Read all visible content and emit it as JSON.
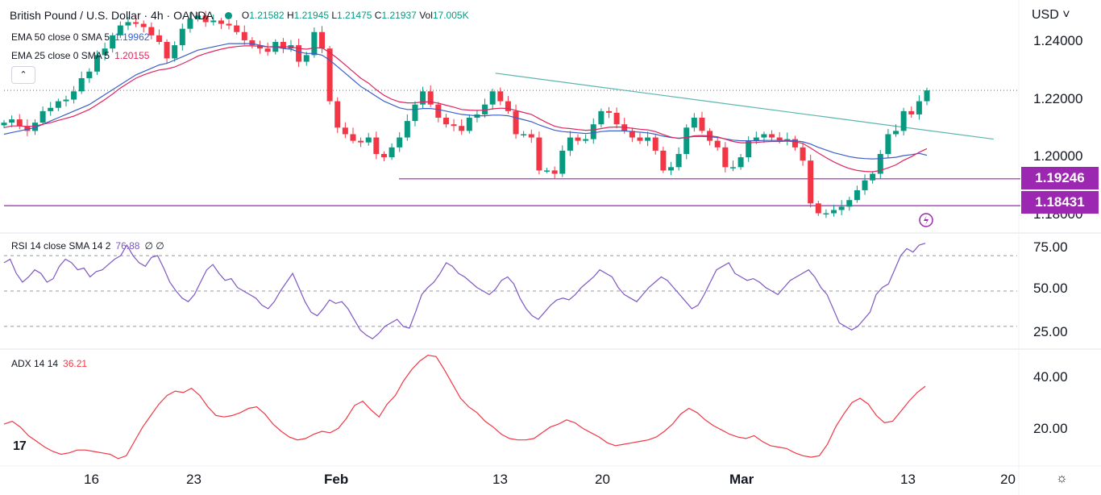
{
  "header": {
    "symbol_title": "British Pound / U.S. Dollar · 4h · OANDA",
    "ohlc": [
      {
        "key": "O",
        "value": "1.21582"
      },
      {
        "key": "H",
        "value": "1.21945"
      },
      {
        "key": "L",
        "value": "1.21475"
      },
      {
        "key": "C",
        "value": "1.21937"
      },
      {
        "key": "Vol",
        "value": "17.005K"
      }
    ]
  },
  "indicators": {
    "ema50": {
      "label": "EMA 50 close 0 SMA 5",
      "value": "1.19962",
      "color": "#3a5fc8"
    },
    "ema25": {
      "label": "EMA 25 close 0 SMA 5",
      "value": "1.20155",
      "color": "#e0245e"
    },
    "rsi": {
      "label": "RSI 14 close SMA 14 2",
      "value": "76.88",
      "extra": "∅ ∅",
      "color": "#7e57c2"
    },
    "adx": {
      "label": "ADX 14 14",
      "value": "36.21",
      "color": "#f23645"
    }
  },
  "currency_selector": "USD ˅",
  "collapse_glyph": "⌃",
  "logo_text": "17",
  "settings_glyph": "☼",
  "colors": {
    "up": "#089981",
    "down": "#f23645",
    "level": "#9c27b0",
    "trend": "#5bb5b0"
  },
  "price_axis": [
    "1.24000",
    "1.22000",
    "1.20000",
    "1.18000"
  ],
  "rsi_axis": [
    "75.00",
    "50.00",
    "25.00"
  ],
  "adx_axis": [
    "40.00",
    "20.00"
  ],
  "price_tags": [
    "1.19246",
    "1.18431"
  ],
  "time_axis": [
    "16",
    "23",
    "Feb",
    "13",
    "20",
    "Mar",
    "13",
    "20"
  ],
  "chart_data": [
    {
      "type": "candlestick",
      "title": "British Pound / U.S. Dollar · 4h · OANDA",
      "ylim": [
        1.177,
        1.2455
      ],
      "levels": [
        1.19246,
        1.18431
      ],
      "trendline": {
        "from": [
          0.485,
          1.2245
        ],
        "to": [
          1.32,
          1.2045
        ]
      },
      "series": [
        {
          "name": "Close",
          "values": [
            1.2095,
            1.2105,
            1.2085,
            1.207,
            1.2095,
            1.213,
            1.214,
            1.216,
            1.2165,
            1.219,
            1.223,
            1.225,
            1.23,
            1.232,
            1.236,
            1.239,
            1.24,
            1.2395,
            1.2385,
            1.236,
            1.234,
            1.229,
            1.233,
            1.238,
            1.241,
            1.242,
            1.24,
            1.2405,
            1.2395,
            1.239,
            1.237,
            1.2345,
            1.233,
            1.232,
            1.231,
            1.234,
            1.232,
            1.233,
            1.228,
            1.23,
            1.237,
            1.232,
            1.216,
            1.208,
            1.206,
            1.204,
            1.2035,
            1.205,
            1.2,
            1.199,
            1.202,
            1.205,
            1.21,
            1.215,
            1.219,
            1.215,
            1.211,
            1.209,
            1.2085,
            1.207,
            1.211,
            1.212,
            1.215,
            1.219,
            1.216,
            1.213,
            1.206,
            1.206,
            1.205,
            1.195,
            1.195,
            1.194,
            1.201,
            1.205,
            1.204,
            1.2045,
            1.209,
            1.213,
            1.2125,
            1.209,
            1.207,
            1.205,
            1.204,
            1.205,
            1.201,
            1.195,
            1.196,
            1.2,
            1.208,
            1.211,
            1.207,
            1.204,
            1.202,
            1.196,
            1.196,
            1.199,
            1.204,
            1.205,
            1.206,
            1.205,
            1.204,
            1.2045,
            1.202,
            1.198,
            1.185,
            1.182,
            1.182,
            1.183,
            1.184,
            1.186,
            1.189,
            1.192,
            1.194,
            1.2,
            1.206,
            1.207,
            1.213,
            1.212,
            1.216,
            1.2193
          ]
        },
        {
          "name": "EMA 50",
          "values": [
            1.206,
            1.2065,
            1.207,
            1.2075,
            1.208,
            1.209,
            1.21,
            1.211,
            1.212,
            1.213,
            1.214,
            1.215,
            1.2165,
            1.218,
            1.2195,
            1.221,
            1.2225,
            1.224,
            1.225,
            1.226,
            1.227,
            1.2275,
            1.2285,
            1.2295,
            1.2305,
            1.2315,
            1.232,
            1.2325,
            1.233,
            1.2335,
            1.2335,
            1.2335,
            1.2335,
            1.233,
            1.2325,
            1.2325,
            1.232,
            1.2318,
            1.231,
            1.2305,
            1.2305,
            1.23,
            1.2285,
            1.2265,
            1.2245,
            1.2225,
            1.2205,
            1.219,
            1.2175,
            1.216,
            1.215,
            1.214,
            1.2135,
            1.2135,
            1.2138,
            1.2138,
            1.2135,
            1.213,
            1.2125,
            1.212,
            1.2118,
            1.2116,
            1.2116,
            1.2118,
            1.2118,
            1.2116,
            1.211,
            1.2104,
            1.2098,
            1.2088,
            1.208,
            1.2072,
            1.2068,
            1.2066,
            1.2064,
            1.2062,
            1.2064,
            1.2068,
            1.207,
            1.207,
            1.207,
            1.2068,
            1.2066,
            1.2064,
            1.206,
            1.2054,
            1.205,
            1.2048,
            1.205,
            1.2053,
            1.2053,
            1.2052,
            1.205,
            1.2046,
            1.2042,
            1.204,
            1.204,
            1.204,
            1.2041,
            1.2041,
            1.2041,
            1.2041,
            1.204,
            1.2037,
            1.203,
            1.202,
            1.2012,
            1.2004,
            1.1998,
            1.1992,
            1.1988,
            1.1986,
            1.1985,
            1.1986,
            1.1988,
            1.199,
            1.1995,
            1.1998,
            1.2002,
            1.1996
          ]
        },
        {
          "name": "EMA 25",
          "values": [
            1.208,
            1.2085,
            1.2085,
            1.2083,
            1.2085,
            1.209,
            1.2095,
            1.2102,
            1.2108,
            1.2115,
            1.2125,
            1.2135,
            1.215,
            1.2165,
            1.2182,
            1.22,
            1.2215,
            1.223,
            1.224,
            1.2248,
            1.2255,
            1.2258,
            1.2264,
            1.2274,
            1.2285,
            1.2297,
            1.2305,
            1.2312,
            1.2318,
            1.2323,
            1.2326,
            1.2328,
            1.2328,
            1.2327,
            1.2325,
            1.2326,
            1.2325,
            1.2325,
            1.232,
            1.2318,
            1.2322,
            1.2322,
            1.2308,
            1.229,
            1.227,
            1.225,
            1.223,
            1.2215,
            1.2195,
            1.2178,
            1.2166,
            1.2158,
            1.2155,
            1.2155,
            1.2158,
            1.2158,
            1.2154,
            1.2148,
            1.2142,
            1.2135,
            1.2133,
            1.2132,
            1.2133,
            1.2137,
            1.2139,
            1.2138,
            1.2132,
            1.2126,
            1.212,
            1.2107,
            1.2095,
            1.2084,
            1.2079,
            1.2077,
            1.2074,
            1.2072,
            1.2073,
            1.2077,
            1.2081,
            1.2082,
            1.2081,
            1.2078,
            1.2075,
            1.2073,
            1.2068,
            1.2059,
            1.2051,
            1.2047,
            1.205,
            1.2055,
            1.2056,
            1.2055,
            1.2052,
            1.2045,
            1.2038,
            1.2034,
            1.2034,
            1.2035,
            1.2037,
            1.2038,
            1.2038,
            1.2039,
            1.2037,
            1.2032,
            1.2018,
            1.2003,
            1.1989,
            1.1976,
            1.1965,
            1.1956,
            1.195,
            1.1947,
            1.1946,
            1.195,
            1.1958,
            1.1967,
            1.1981,
            1.1992,
            1.2005,
            1.2016
          ]
        }
      ]
    },
    {
      "type": "line",
      "title": "RSI 14 close SMA 14 2",
      "ylim": [
        19,
        81
      ],
      "bands": [
        70,
        50,
        30
      ],
      "series": [
        {
          "name": "RSI",
          "values": [
            66,
            68,
            60,
            55,
            58,
            62,
            60,
            55,
            57,
            64,
            68,
            66,
            62,
            63,
            58,
            61,
            62,
            65,
            68,
            70,
            76,
            70,
            66,
            64,
            69,
            70,
            63,
            55,
            50,
            46,
            44,
            48,
            55,
            62,
            65,
            60,
            56,
            57,
            52,
            50,
            48,
            46,
            42,
            40,
            44,
            50,
            55,
            60,
            52,
            44,
            38,
            36,
            40,
            45,
            43,
            44,
            40,
            34,
            28,
            25,
            23,
            26,
            30,
            32,
            34,
            30,
            29,
            38,
            48,
            52,
            55,
            60,
            66,
            64,
            60,
            58,
            55,
            52,
            50,
            48,
            51,
            56,
            58,
            54,
            46,
            40,
            36,
            34,
            38,
            42,
            45,
            46,
            45,
            48,
            52,
            55,
            58,
            62,
            60,
            58,
            52,
            48,
            46,
            44,
            48,
            52,
            55,
            58,
            56,
            52,
            48,
            44,
            40,
            42,
            48,
            55,
            62,
            64,
            66,
            60,
            58,
            56,
            57,
            55,
            52,
            50,
            48,
            52,
            56,
            58,
            60,
            62,
            58,
            52,
            48,
            40,
            32,
            30,
            28,
            30,
            34,
            38,
            48,
            52,
            54,
            62,
            70,
            74,
            72,
            76,
            77
          ]
        }
      ]
    },
    {
      "type": "line",
      "title": "ADX 14 14",
      "ylim": [
        9,
        48
      ],
      "series": [
        {
          "name": "ADX",
          "values": [
            23,
            24,
            22,
            19,
            17,
            15,
            13.5,
            12.5,
            13,
            14,
            14,
            13.5,
            13,
            12.5,
            11,
            12,
            17,
            22,
            26,
            30,
            33,
            34.5,
            34,
            35.5,
            33,
            29,
            26,
            25.5,
            26,
            27,
            28.5,
            29,
            26.5,
            23,
            20.5,
            18.5,
            17.5,
            18,
            19.5,
            20.5,
            20,
            21.5,
            25,
            29.5,
            31,
            28,
            25.5,
            30,
            33,
            38,
            42,
            45,
            47,
            46.5,
            42,
            37,
            32,
            29,
            27,
            24,
            22,
            19.5,
            18,
            17.5,
            17.5,
            18,
            20,
            22,
            23,
            24.5,
            23.5,
            21.5,
            20,
            18.5,
            16.5,
            15.5,
            16,
            16.5,
            17,
            17.5,
            18.5,
            20.5,
            23,
            26.5,
            28.5,
            27,
            24.5,
            22.5,
            21,
            19.5,
            18.5,
            18,
            19,
            17,
            15.5,
            15,
            14.5,
            13,
            12,
            11.5,
            12,
            16,
            22,
            26.5,
            30.5,
            32,
            30,
            26,
            23.5,
            24,
            27.5,
            31,
            34,
            36.2
          ]
        }
      ]
    }
  ]
}
